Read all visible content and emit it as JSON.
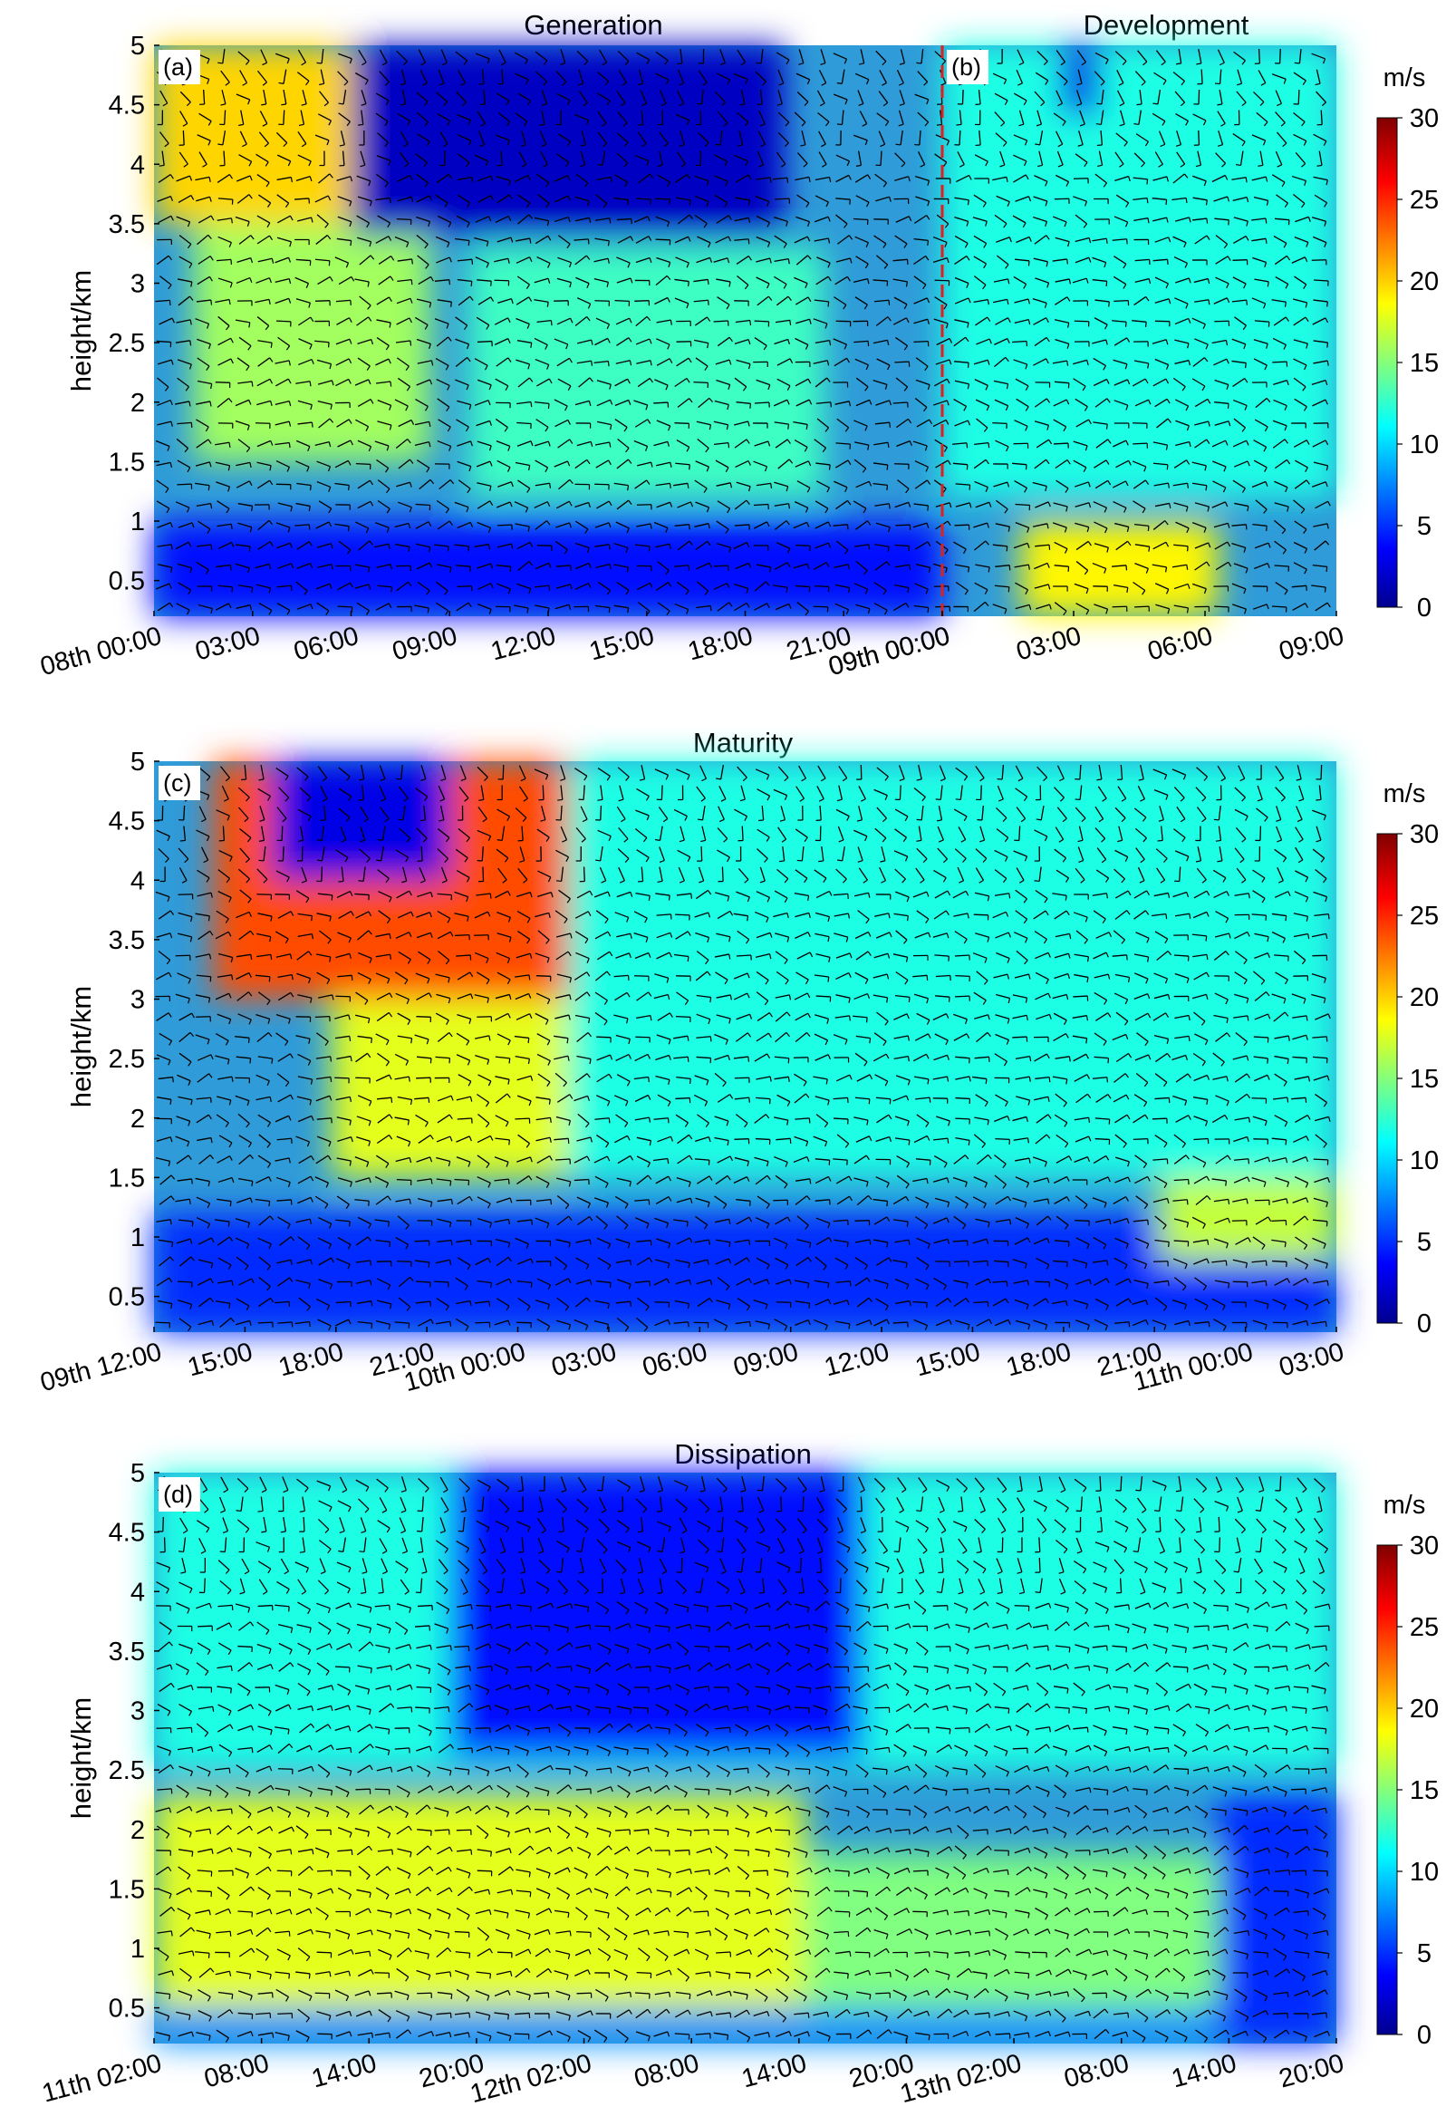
{
  "chart_data": [
    {
      "type": "heatmap",
      "panel": "(a)",
      "title": "Generation",
      "ylabel": "height/km",
      "ylim": [
        0.2,
        5
      ],
      "yticks": [
        0.5,
        1,
        1.5,
        2,
        2.5,
        3,
        3.5,
        4,
        4.5,
        5
      ],
      "xticks": [
        "08th 00:00",
        "03:00",
        "06:00",
        "09:00",
        "12:00",
        "15:00",
        "18:00",
        "21:00",
        "09th 00:00"
      ],
      "colorbar": {
        "label": "m/s",
        "range": [
          0,
          30
        ],
        "ticks": [
          0,
          5,
          10,
          15,
          20,
          25,
          30
        ]
      },
      "features": [
        {
          "t0": 0.0,
          "t1": 0.35,
          "h0": 3.5,
          "h1": 5.0,
          "v": 20
        },
        {
          "t0": 0.05,
          "t1": 0.35,
          "h0": 1.5,
          "h1": 3.5,
          "v": 16
        },
        {
          "t0": 0.25,
          "t1": 0.8,
          "h0": 3.4,
          "h1": 5.0,
          "v": 2
        },
        {
          "t0": 0.4,
          "t1": 0.85,
          "h0": 1.2,
          "h1": 3.3,
          "v": 13
        },
        {
          "t0": 0.0,
          "t1": 1.0,
          "h0": 0.2,
          "h1": 1.0,
          "v": 4
        }
      ],
      "divider_label": "(b)"
    },
    {
      "type": "heatmap",
      "panel": "(b)",
      "title": "Development",
      "ylim": [
        0.2,
        5
      ],
      "xticks": [
        "09th 00:00",
        "03:00",
        "06:00",
        "09:00"
      ],
      "colorbar": {
        "label": "m/s",
        "range": [
          0,
          30
        ],
        "ticks": [
          0,
          5,
          10,
          15,
          20,
          25,
          30
        ]
      },
      "features": [
        {
          "t0": 0.0,
          "t1": 1.0,
          "h0": 1.2,
          "h1": 5.0,
          "v": 12
        },
        {
          "t0": 0.2,
          "t1": 0.7,
          "h0": 0.2,
          "h1": 1.0,
          "v": 19
        },
        {
          "t0": 0.3,
          "t1": 0.4,
          "h0": 4.4,
          "h1": 5.0,
          "v": 3
        }
      ]
    },
    {
      "type": "heatmap",
      "panel": "(c)",
      "title": "Maturity",
      "ylabel": "height/km",
      "ylim": [
        0.2,
        5
      ],
      "yticks": [
        0.5,
        1,
        1.5,
        2,
        2.5,
        3,
        3.5,
        4,
        4.5,
        5
      ],
      "xticks": [
        "09th 12:00",
        "15:00",
        "18:00",
        "21:00",
        "10th 00:00",
        "03:00",
        "06:00",
        "09:00",
        "12:00",
        "15:00",
        "18:00",
        "21:00",
        "11th 00:00",
        "03:00"
      ],
      "colorbar": {
        "label": "m/s",
        "range": [
          0,
          30
        ],
        "ticks": [
          0,
          5,
          10,
          15,
          20,
          25,
          30
        ]
      },
      "features": [
        {
          "t0": 0.05,
          "t1": 0.4,
          "h0": 3.0,
          "h1": 5.0,
          "v": 24
        },
        {
          "t0": 0.1,
          "t1": 0.25,
          "h0": 4.0,
          "h1": 5.0,
          "v": 3
        },
        {
          "t0": 0.15,
          "t1": 0.35,
          "h0": 1.5,
          "h1": 3.0,
          "v": 18
        },
        {
          "t0": 0.35,
          "t1": 1.0,
          "h0": 1.5,
          "h1": 5.0,
          "v": 12
        },
        {
          "t0": 0.0,
          "t1": 1.0,
          "h0": 0.2,
          "h1": 1.2,
          "v": 5
        },
        {
          "t0": 0.85,
          "t1": 1.0,
          "h0": 0.8,
          "h1": 1.5,
          "v": 17
        }
      ]
    },
    {
      "type": "heatmap",
      "panel": "(d)",
      "title": "Dissipation",
      "ylabel": "height/km",
      "ylim": [
        0.2,
        5
      ],
      "yticks": [
        0.5,
        1,
        1.5,
        2,
        2.5,
        3,
        3.5,
        4,
        4.5,
        5
      ],
      "xticks": [
        "11th 02:00",
        "08:00",
        "14:00",
        "20:00",
        "12th 02:00",
        "08:00",
        "14:00",
        "20:00",
        "13th 02:00",
        "08:00",
        "14:00",
        "20:00"
      ],
      "colorbar": {
        "label": "m/s",
        "range": [
          0,
          30
        ],
        "ticks": [
          0,
          5,
          10,
          15,
          20,
          25,
          30
        ]
      },
      "features": [
        {
          "t0": 0.0,
          "t1": 1.0,
          "h0": 2.5,
          "h1": 5.0,
          "v": 12
        },
        {
          "t0": 0.25,
          "t1": 0.6,
          "h0": 2.6,
          "h1": 5.0,
          "v": 4
        },
        {
          "t0": 0.0,
          "t1": 0.55,
          "h0": 0.5,
          "h1": 2.3,
          "v": 18
        },
        {
          "t0": 0.55,
          "t1": 0.95,
          "h0": 0.5,
          "h1": 1.8,
          "v": 15
        },
        {
          "t0": 0.0,
          "t1": 1.0,
          "h0": 0.2,
          "h1": 0.5,
          "v": 8
        },
        {
          "t0": 0.9,
          "t1": 1.0,
          "h0": 0.2,
          "h1": 2.3,
          "v": 5
        }
      ]
    }
  ]
}
